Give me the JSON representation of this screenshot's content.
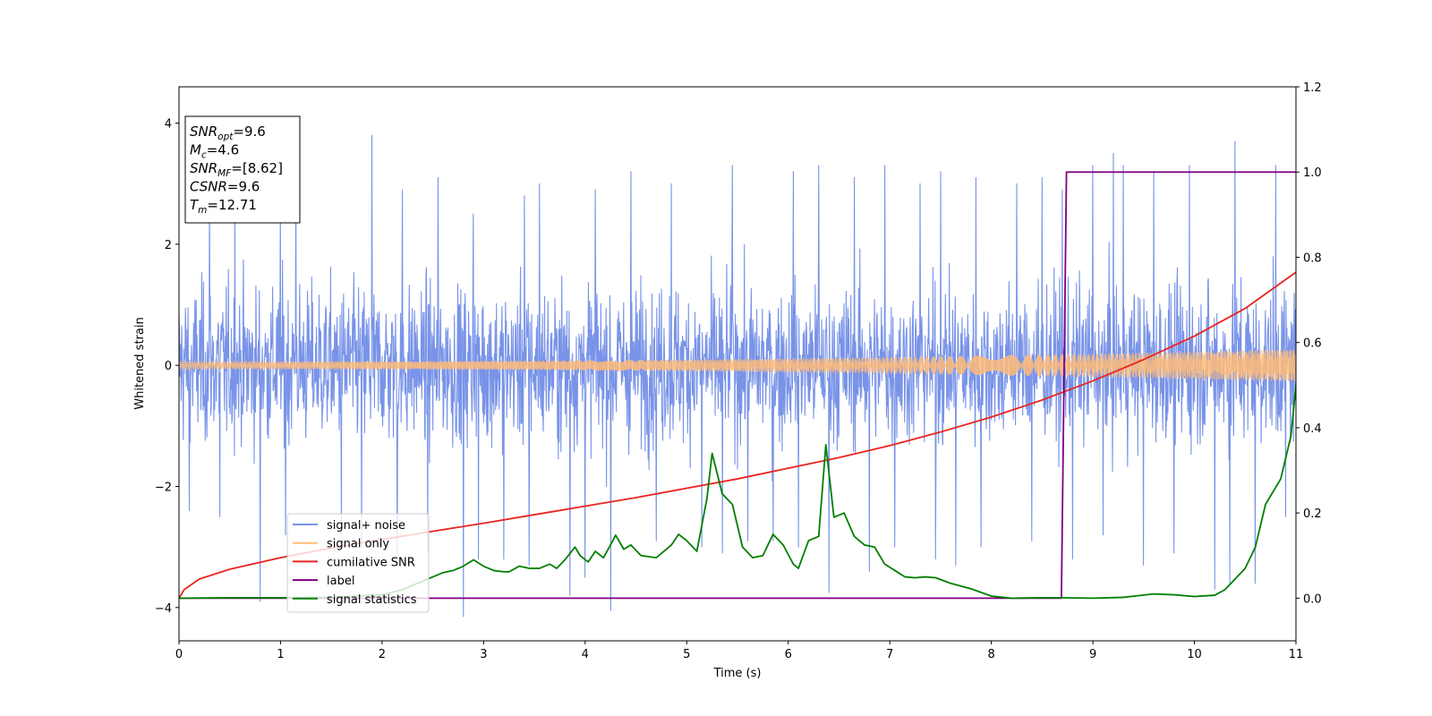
{
  "chart_data": {
    "type": "line",
    "xlabel": "Time (s)",
    "ylabel": "Whitened strain",
    "xlim": [
      0,
      11
    ],
    "ylim": [
      -4.55,
      4.6
    ],
    "y2lim": [
      -0.1,
      1.2
    ],
    "x_ticks": [
      0,
      1,
      2,
      3,
      4,
      5,
      6,
      7,
      8,
      9,
      10,
      11
    ],
    "y_ticks": [
      -4,
      -2,
      0,
      2,
      4
    ],
    "y2_ticks": [
      0.0,
      0.2,
      0.4,
      0.6,
      0.8,
      1.0,
      1.2
    ],
    "y2_tick_labels": [
      "0.0",
      "0.2",
      "0.4",
      "0.6",
      "0.8",
      "1.0",
      "1.2"
    ],
    "legend_position": "lower-left",
    "info_box": {
      "lines": [
        {
          "sym": "SNR",
          "sub": "opt",
          "val": "=9.6"
        },
        {
          "sym": "M",
          "sub": "c",
          "val": "=4.6"
        },
        {
          "sym": "SNR",
          "sub": "MF",
          "val": "=[8.62]"
        },
        {
          "sym": "CSNR",
          "sub": "",
          "val": "=9.6"
        },
        {
          "sym": "T",
          "sub": "m",
          "val": "=12.71"
        }
      ]
    },
    "series": [
      {
        "name": "signal+ noise",
        "axis": "left",
        "color": "#7893e8",
        "style": "noise",
        "baseline_std": 1.05,
        "spikes_up": [
          [
            0.1,
            2.7
          ],
          [
            0.3,
            2.9
          ],
          [
            0.55,
            2.6
          ],
          [
            0.8,
            2.3
          ],
          [
            1.0,
            2.8
          ],
          [
            1.15,
            3.4
          ],
          [
            1.6,
            3.7
          ],
          [
            1.9,
            3.8
          ],
          [
            2.2,
            2.9
          ],
          [
            2.55,
            3.1
          ],
          [
            2.9,
            2.5
          ],
          [
            3.2,
            2.6
          ],
          [
            3.4,
            2.8
          ],
          [
            3.55,
            3.0
          ],
          [
            3.85,
            2.6
          ],
          [
            4.1,
            2.9
          ],
          [
            4.25,
            3.2
          ],
          [
            4.45,
            3.2
          ],
          [
            4.85,
            3.0
          ],
          [
            5.15,
            3.2
          ],
          [
            5.45,
            3.3
          ],
          [
            5.6,
            2.9
          ],
          [
            5.85,
            3.9
          ],
          [
            6.05,
            3.2
          ],
          [
            6.3,
            3.3
          ],
          [
            6.65,
            3.1
          ],
          [
            6.95,
            3.3
          ],
          [
            7.3,
            3.0
          ],
          [
            7.5,
            3.2
          ],
          [
            7.85,
            3.1
          ],
          [
            8.25,
            3.0
          ],
          [
            8.5,
            3.1
          ],
          [
            8.7,
            2.9
          ],
          [
            9.0,
            3.3
          ],
          [
            9.2,
            3.5
          ],
          [
            9.3,
            3.3
          ],
          [
            9.6,
            3.2
          ],
          [
            9.95,
            3.3
          ],
          [
            10.2,
            3.1
          ],
          [
            10.4,
            3.7
          ],
          [
            10.6,
            4.2
          ],
          [
            10.8,
            3.3
          ]
        ],
        "spikes_down": [
          [
            0.1,
            -2.4
          ],
          [
            0.4,
            -2.5
          ],
          [
            0.8,
            -3.9
          ],
          [
            1.05,
            -2.8
          ],
          [
            1.6,
            -2.8
          ],
          [
            1.8,
            -3.0
          ],
          [
            2.15,
            -3.3
          ],
          [
            2.45,
            -3.1
          ],
          [
            2.8,
            -4.15
          ],
          [
            2.95,
            -3.2
          ],
          [
            3.2,
            -3.2
          ],
          [
            3.45,
            -3.3
          ],
          [
            3.85,
            -3.8
          ],
          [
            4.0,
            -3.5
          ],
          [
            4.25,
            -4.05
          ],
          [
            4.7,
            -2.9
          ],
          [
            5.15,
            -3.0
          ],
          [
            5.35,
            -3.1
          ],
          [
            5.6,
            -2.9
          ],
          [
            5.85,
            -2.9
          ],
          [
            6.1,
            -3.0
          ],
          [
            6.4,
            -3.75
          ],
          [
            6.8,
            -3.4
          ],
          [
            7.05,
            -3.0
          ],
          [
            7.45,
            -3.2
          ],
          [
            7.65,
            -3.3
          ],
          [
            7.9,
            -3.0
          ],
          [
            8.4,
            -2.9
          ],
          [
            8.8,
            -3.2
          ],
          [
            9.1,
            -2.8
          ],
          [
            9.5,
            -3.3
          ],
          [
            9.8,
            -3.1
          ],
          [
            10.2,
            -3.7
          ],
          [
            10.35,
            -3.6
          ],
          [
            10.6,
            -3.6
          ],
          [
            10.9,
            -2.5
          ]
        ]
      },
      {
        "name": "signal only",
        "axis": "left",
        "color": "#ffbb78",
        "style": "chirp",
        "amplitude_start": 0.06,
        "amplitude_end": 0.27
      },
      {
        "name": "cumilative SNR",
        "axis": "right",
        "color": "#e8251f",
        "style": "line",
        "x": [
          0,
          0.05,
          0.2,
          0.5,
          1.0,
          1.5,
          2.0,
          2.5,
          3.0,
          3.5,
          4.0,
          4.5,
          5.0,
          5.5,
          6.0,
          6.5,
          7.0,
          7.5,
          8.0,
          8.5,
          9.0,
          9.5,
          10.0,
          10.5,
          11.0
        ],
        "y": [
          0.0,
          0.02,
          0.045,
          0.068,
          0.095,
          0.118,
          0.138,
          0.157,
          0.176,
          0.196,
          0.216,
          0.236,
          0.258,
          0.28,
          0.305,
          0.33,
          0.358,
          0.39,
          0.425,
          0.465,
          0.51,
          0.56,
          0.615,
          0.68,
          0.765
        ]
      },
      {
        "name": "label",
        "axis": "right",
        "color": "#800080",
        "style": "step",
        "x": [
          0,
          8.69,
          8.74,
          11.0
        ],
        "y": [
          0.0,
          0.0,
          1.0,
          1.0
        ]
      },
      {
        "name": "signal statistics",
        "axis": "right",
        "color": "#007f00",
        "style": "line",
        "x": [
          0,
          0.5,
          1.0,
          1.5,
          2.0,
          2.2,
          2.4,
          2.6,
          2.7,
          2.8,
          2.9,
          3.0,
          3.1,
          3.2,
          3.25,
          3.35,
          3.45,
          3.55,
          3.65,
          3.72,
          3.8,
          3.9,
          3.95,
          4.03,
          4.1,
          4.18,
          4.25,
          4.3,
          4.38,
          4.45,
          4.55,
          4.7,
          4.85,
          4.92,
          5.0,
          5.1,
          5.2,
          5.25,
          5.35,
          5.45,
          5.55,
          5.65,
          5.75,
          5.85,
          5.95,
          6.05,
          6.1,
          6.2,
          6.3,
          6.37,
          6.45,
          6.55,
          6.65,
          6.75,
          6.85,
          6.95,
          7.05,
          7.15,
          7.25,
          7.35,
          7.45,
          7.6,
          7.8,
          8.0,
          8.2,
          8.5,
          8.7,
          9.0,
          9.3,
          9.6,
          9.8,
          10.0,
          10.2,
          10.3,
          10.4,
          10.5,
          10.6,
          10.7,
          10.85,
          10.95,
          11.0
        ],
        "y": [
          0.0,
          0.001,
          0.001,
          0.002,
          0.008,
          0.02,
          0.04,
          0.06,
          0.065,
          0.075,
          0.09,
          0.075,
          0.065,
          0.062,
          0.062,
          0.075,
          0.07,
          0.07,
          0.08,
          0.07,
          0.09,
          0.12,
          0.1,
          0.085,
          0.11,
          0.095,
          0.125,
          0.148,
          0.115,
          0.125,
          0.1,
          0.095,
          0.125,
          0.15,
          0.135,
          0.11,
          0.235,
          0.34,
          0.245,
          0.22,
          0.12,
          0.095,
          0.1,
          0.15,
          0.125,
          0.08,
          0.07,
          0.135,
          0.145,
          0.36,
          0.19,
          0.2,
          0.145,
          0.125,
          0.12,
          0.08,
          0.065,
          0.05,
          0.048,
          0.05,
          0.048,
          0.035,
          0.022,
          0.005,
          0.0,
          0.001,
          0.001,
          0.0,
          0.002,
          0.01,
          0.008,
          0.004,
          0.007,
          0.02,
          0.045,
          0.07,
          0.12,
          0.22,
          0.28,
          0.38,
          0.5
        ]
      }
    ]
  }
}
